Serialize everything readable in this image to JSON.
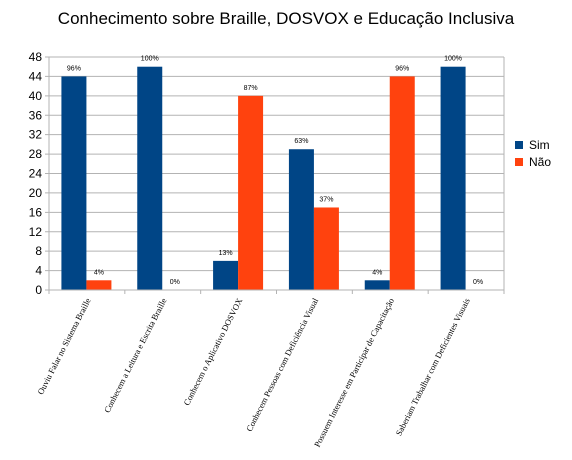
{
  "chart_data": {
    "type": "bar",
    "title": "Conhecimento sobre Braille, DOSVOX e Educação Inclusiva",
    "xlabel": "",
    "ylabel": "",
    "ylim": [
      0,
      48
    ],
    "yticks": [
      0,
      4,
      8,
      12,
      16,
      20,
      24,
      28,
      32,
      36,
      40,
      44,
      48
    ],
    "grid": true,
    "legend_position": "right",
    "categories": [
      "Ouviu Falar no Sistema Braille",
      "Conhecem a Leitura e Escrita Braille",
      "Conhecem o Aplicativo DOSVOX",
      "Conhecem Pessoas com Deficiência Visual",
      "Possuem Interesse em Participar de Capacitação",
      "Saberiam Trabalhar com Deficientes Visuais"
    ],
    "series": [
      {
        "name": "Sim",
        "color": "#004586",
        "values": [
          44,
          46,
          6,
          29,
          2,
          46
        ],
        "labels": [
          "96%",
          "100%",
          "13%",
          "63%",
          "4%",
          "100%"
        ]
      },
      {
        "name": "Não",
        "color": "#ff420e",
        "values": [
          2,
          0,
          40,
          17,
          44,
          0
        ],
        "labels": [
          "4%",
          "0%",
          "87%",
          "37%",
          "96%",
          "0%"
        ]
      }
    ]
  }
}
